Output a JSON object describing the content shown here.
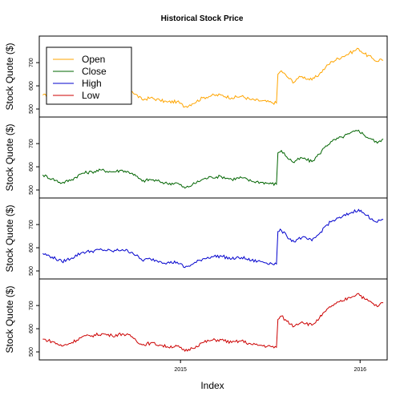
{
  "chart_data": {
    "type": "line",
    "title": "Historical Stock Price",
    "xlabel": "Index",
    "ylabel": "Stock Quote ($)",
    "x_ticks": [
      {
        "date": "2015-01-01",
        "label": "2015"
      },
      {
        "date": "2016-01-01",
        "label": "2016"
      }
    ],
    "y_ticks": [
      "500",
      "600",
      "700"
    ],
    "ylim": [
      500,
      780
    ],
    "xlim": [
      "2014-03-20",
      "2016-02-25"
    ],
    "legend_position": "top-left",
    "series": [
      {
        "name": "Open",
        "color": "#FFA500",
        "offset": 0,
        "dates": [
          "2014-03-27",
          "2014-04-15",
          "2014-05-05",
          "2014-05-25",
          "2014-06-15",
          "2014-07-05",
          "2014-07-25",
          "2014-08-15",
          "2014-09-05",
          "2014-09-25",
          "2014-10-15",
          "2014-11-01",
          "2014-11-20",
          "2014-12-05",
          "2014-12-25",
          "2015-01-10",
          "2015-01-25",
          "2015-02-15",
          "2015-03-05",
          "2015-03-25",
          "2015-04-15",
          "2015-05-05",
          "2015-05-25",
          "2015-06-15",
          "2015-07-05",
          "2015-07-15",
          "2015-07-18",
          "2015-07-25",
          "2015-08-05",
          "2015-08-20",
          "2015-08-25",
          "2015-09-05",
          "2015-09-25",
          "2015-10-10",
          "2015-10-23",
          "2015-11-05",
          "2015-11-25",
          "2015-12-10",
          "2015-12-29",
          "2016-01-10",
          "2016-01-25",
          "2016-02-05",
          "2016-02-10",
          "2016-02-17"
        ],
        "values": [
          560,
          552,
          534,
          550,
          575,
          580,
          588,
          580,
          588,
          575,
          540,
          548,
          538,
          530,
          532,
          510,
          523,
          548,
          558,
          560,
          548,
          555,
          540,
          535,
          528,
          526,
          650,
          665,
          640,
          615,
          630,
          640,
          625,
          650,
          680,
          705,
          725,
          740,
          760,
          738,
          720,
          705,
          715,
          710
        ]
      },
      {
        "name": "Close",
        "color": "#006400",
        "offset": 0,
        "dates": [
          "2014-03-27",
          "2014-04-15",
          "2014-05-05",
          "2014-05-25",
          "2014-06-15",
          "2014-07-05",
          "2014-07-25",
          "2014-08-15",
          "2014-09-05",
          "2014-09-25",
          "2014-10-15",
          "2014-11-01",
          "2014-11-20",
          "2014-12-05",
          "2014-12-25",
          "2015-01-10",
          "2015-01-25",
          "2015-02-15",
          "2015-03-05",
          "2015-03-25",
          "2015-04-15",
          "2015-05-05",
          "2015-05-25",
          "2015-06-15",
          "2015-07-05",
          "2015-07-15",
          "2015-07-18",
          "2015-07-25",
          "2015-08-05",
          "2015-08-20",
          "2015-08-25",
          "2015-09-05",
          "2015-09-25",
          "2015-10-10",
          "2015-10-23",
          "2015-11-05",
          "2015-11-25",
          "2015-12-10",
          "2015-12-29",
          "2016-01-10",
          "2016-01-25",
          "2016-02-05",
          "2016-02-10",
          "2016-02-17"
        ],
        "values": [
          565,
          548,
          530,
          545,
          572,
          578,
          586,
          578,
          585,
          572,
          538,
          545,
          536,
          528,
          530,
          508,
          522,
          546,
          556,
          558,
          546,
          553,
          538,
          533,
          527,
          525,
          660,
          670,
          642,
          618,
          628,
          638,
          622,
          655,
          690,
          710,
          728,
          742,
          758,
          735,
          718,
          702,
          712,
          720
        ]
      },
      {
        "name": "High",
        "color": "#0000CD",
        "offset": 0,
        "dates": [
          "2014-03-27",
          "2014-04-15",
          "2014-05-05",
          "2014-05-25",
          "2014-06-15",
          "2014-07-05",
          "2014-07-25",
          "2014-08-15",
          "2014-09-05",
          "2014-09-25",
          "2014-10-15",
          "2014-11-01",
          "2014-11-20",
          "2014-12-05",
          "2014-12-25",
          "2015-01-10",
          "2015-01-25",
          "2015-02-15",
          "2015-03-05",
          "2015-03-25",
          "2015-04-15",
          "2015-05-05",
          "2015-05-25",
          "2015-06-15",
          "2015-07-05",
          "2015-07-15",
          "2015-07-18",
          "2015-07-25",
          "2015-08-05",
          "2015-08-20",
          "2015-08-25",
          "2015-09-05",
          "2015-09-25",
          "2015-10-10",
          "2015-10-23",
          "2015-11-05",
          "2015-11-25",
          "2015-12-10",
          "2015-12-29",
          "2016-01-10",
          "2016-01-25",
          "2016-02-05",
          "2016-02-10",
          "2016-02-17"
        ],
        "values": [
          575,
          560,
          540,
          556,
          580,
          585,
          592,
          585,
          592,
          580,
          546,
          552,
          542,
          535,
          538,
          515,
          528,
          552,
          562,
          564,
          552,
          558,
          545,
          540,
          532,
          530,
          670,
          675,
          650,
          625,
          635,
          645,
          630,
          660,
          695,
          715,
          732,
          748,
          765,
          745,
          725,
          710,
          718,
          722
        ]
      },
      {
        "name": "Low",
        "color": "#CC0000",
        "offset": 0,
        "dates": [
          "2014-03-27",
          "2014-04-15",
          "2014-05-05",
          "2014-05-25",
          "2014-06-15",
          "2014-07-05",
          "2014-07-25",
          "2014-08-15",
          "2014-09-05",
          "2014-09-25",
          "2014-10-15",
          "2014-11-01",
          "2014-11-20",
          "2014-12-05",
          "2014-12-25",
          "2015-01-10",
          "2015-01-25",
          "2015-02-15",
          "2015-03-05",
          "2015-03-25",
          "2015-04-15",
          "2015-05-05",
          "2015-05-25",
          "2015-06-15",
          "2015-07-05",
          "2015-07-15",
          "2015-07-18",
          "2015-07-25",
          "2015-08-05",
          "2015-08-20",
          "2015-08-25",
          "2015-09-05",
          "2015-09-25",
          "2015-10-10",
          "2015-10-23",
          "2015-11-05",
          "2015-11-25",
          "2015-12-10",
          "2015-12-29",
          "2016-01-10",
          "2016-01-25",
          "2016-02-05",
          "2016-02-10",
          "2016-02-17"
        ],
        "values": [
          555,
          545,
          525,
          540,
          565,
          570,
          578,
          570,
          578,
          565,
          530,
          538,
          530,
          522,
          525,
          503,
          516,
          540,
          550,
          552,
          540,
          548,
          532,
          528,
          522,
          520,
          640,
          655,
          632,
          610,
          620,
          630,
          615,
          645,
          675,
          700,
          718,
          735,
          752,
          728,
          712,
          695,
          705,
          712
        ]
      }
    ]
  }
}
